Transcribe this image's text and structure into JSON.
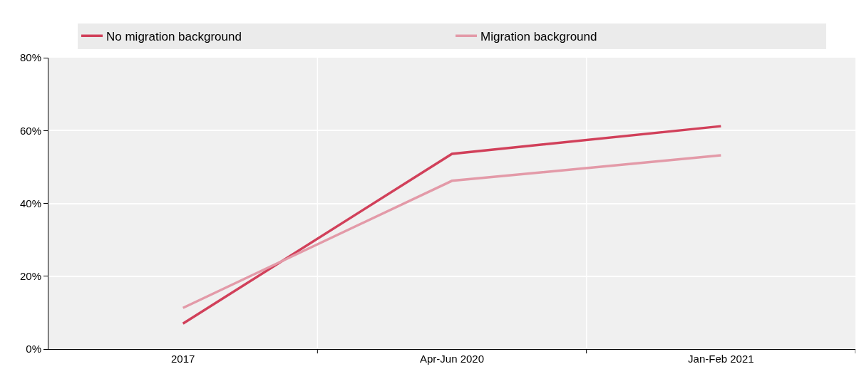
{
  "chart_data": {
    "type": "line",
    "categories": [
      "2017",
      "Apr-Jun 2020",
      "Jan-Feb 2021"
    ],
    "series": [
      {
        "name": "No migration background",
        "color": "#d1405a",
        "values": [
          7.0,
          53.6,
          61.2
        ]
      },
      {
        "name": "Migration background",
        "color": "#e39aa8",
        "values": [
          11.3,
          46.2,
          53.2
        ]
      }
    ],
    "ylim": [
      0,
      80
    ],
    "yticks": [
      {
        "value": 0,
        "label": "0%"
      },
      {
        "value": 20,
        "label": "20%"
      },
      {
        "value": 40,
        "label": "40%"
      },
      {
        "value": 60,
        "label": "60%"
      },
      {
        "value": 80,
        "label": "80%"
      }
    ],
    "grid": true,
    "legend": "top",
    "marker": "none",
    "line_style": "solid"
  }
}
